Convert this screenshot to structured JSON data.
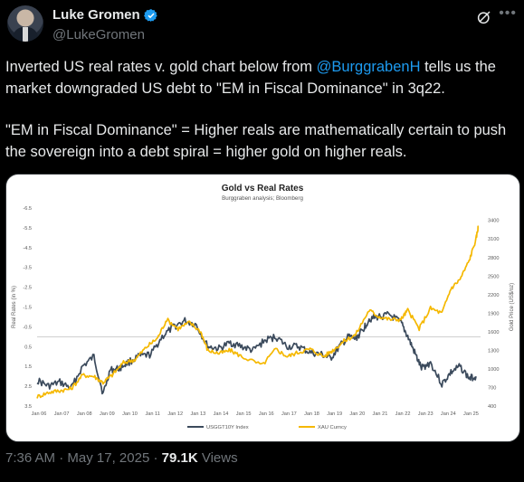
{
  "author": {
    "name": "Luke Gromen",
    "handle": "@LukeGromen"
  },
  "icons": {
    "verified": "verified-badge-icon",
    "grok": "grok-icon",
    "more": "more-icon"
  },
  "tweet": {
    "p1_before": "Inverted US real rates v. gold chart below from ",
    "p1_mention": "@BurggrabenH",
    "p1_after": " tells us the market downgraded US debt to \"EM in Fiscal Dominance\" in 3q22.",
    "p2": "\"EM in Fiscal Dominance\" = Higher reals are mathematically certain to push the sovereign into a debt spiral = higher gold on higher reals."
  },
  "meta": {
    "time": "7:36 AM",
    "date": "May 17, 2025",
    "views_count": "79.1K",
    "views_label": "Views",
    "sep": " · "
  },
  "colors": {
    "accent": "#1d9bf0",
    "gold_series": "#f5b800",
    "real_rate_series": "#3b4a5c"
  },
  "chart_data": {
    "type": "line",
    "title": "Gold vs Real Rates",
    "subtitle": "Burggraben analysis; Bloomberg",
    "ylabel_left": "Real Rates (in %)",
    "ylabel_right": "Gold Price (US$/oz)",
    "left_axis_inverted": true,
    "ylim_left": [
      -6.5,
      3.5
    ],
    "ylim_right": [
      400,
      3600
    ],
    "left_ticks": [
      "-6.5",
      "-5.5",
      "-4.5",
      "-3.5",
      "-2.5",
      "-1.5",
      "-0.5",
      "0.5",
      "1.5",
      "2.5",
      "3.5"
    ],
    "right_ticks": [
      "3400",
      "3100",
      "2800",
      "2500",
      "2200",
      "1900",
      "1600",
      "1300",
      "1000",
      "700",
      "400"
    ],
    "x_ticks": [
      "Jan 06",
      "Jan 07",
      "Jan 08",
      "Jan 09",
      "Jan 10",
      "Jan 11",
      "Jan 12",
      "Jan 13",
      "Jan 14",
      "Jan 15",
      "Jan 16",
      "Jan 17",
      "Jan 18",
      "Jan 19",
      "Jan 20",
      "Jan 21",
      "Jan 22",
      "Jan 23",
      "Jan 24",
      "Jan 25"
    ],
    "grid": false,
    "zero_line": true,
    "legend_position": "bottom",
    "series": [
      {
        "name": "USGGT10Y Index",
        "axis": "left",
        "color": "#3b4a5c",
        "x": [
          2006,
          2006.5,
          2007,
          2007.5,
          2008,
          2008.5,
          2008.9,
          2009.2,
          2009.6,
          2010,
          2010.5,
          2011,
          2011.5,
          2012,
          2012.5,
          2013,
          2013.5,
          2014,
          2014.5,
          2015,
          2015.5,
          2016,
          2016.5,
          2017,
          2017.5,
          2018,
          2018.5,
          2018.9,
          2019.3,
          2019.7,
          2020,
          2020.3,
          2020.6,
          2021,
          2021.5,
          2022,
          2022.3,
          2022.6,
          2022.9,
          2023.3,
          2023.8,
          2024.2,
          2024.6,
          2025,
          2025.3
        ],
        "y": [
          2.2,
          2.5,
          2.3,
          2.6,
          1.5,
          1.0,
          2.9,
          1.7,
          1.6,
          1.3,
          1.0,
          0.9,
          0.0,
          -0.5,
          -0.8,
          -0.6,
          0.5,
          0.6,
          0.3,
          0.5,
          0.7,
          0.2,
          0.0,
          0.5,
          0.5,
          0.8,
          0.9,
          1.1,
          0.5,
          0.0,
          0.1,
          -0.3,
          -0.9,
          -1.0,
          -1.1,
          -0.7,
          0.0,
          0.8,
          1.6,
          1.3,
          2.4,
          1.8,
          1.5,
          2.1,
          2.0
        ]
      },
      {
        "name": "XAU Curncy",
        "axis": "right",
        "color": "#f5b800",
        "x": [
          2006,
          2006.5,
          2007,
          2007.5,
          2008,
          2008.5,
          2008.9,
          2009.3,
          2009.8,
          2010.3,
          2010.8,
          2011.3,
          2011.7,
          2012.2,
          2012.7,
          2013.2,
          2013.5,
          2014,
          2014.5,
          2015,
          2015.9,
          2016.5,
          2017,
          2017.5,
          2018,
          2018.6,
          2019,
          2019.5,
          2020,
          2020.6,
          2021,
          2021.5,
          2022,
          2022.3,
          2022.8,
          2023.3,
          2023.8,
          2024.2,
          2024.6,
          2025,
          2025.3,
          2025.4
        ],
        "y": [
          550,
          620,
          650,
          680,
          900,
          880,
          780,
          900,
          1100,
          1150,
          1350,
          1500,
          1800,
          1650,
          1750,
          1600,
          1300,
          1250,
          1300,
          1200,
          1060,
          1320,
          1200,
          1270,
          1320,
          1200,
          1300,
          1450,
          1550,
          1950,
          1850,
          1800,
          1800,
          1950,
          1650,
          1980,
          1900,
          2300,
          2450,
          2750,
          3100,
          3300
        ]
      }
    ]
  }
}
